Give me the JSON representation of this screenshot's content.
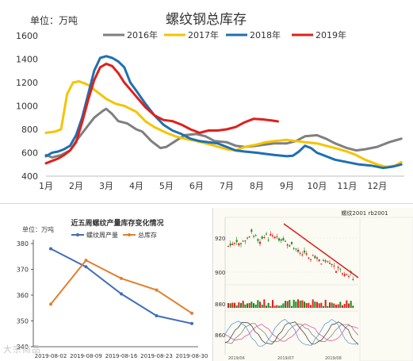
{
  "main_chart": {
    "title": "螺纹钢总库存",
    "unit_label": "单位：万吨",
    "legend": [
      {
        "name": "2016年",
        "color": "#7f7f7f"
      },
      {
        "name": "2017年",
        "color": "#f5c400"
      },
      {
        "name": "2018年",
        "color": "#1f6fb2"
      },
      {
        "name": "2019年",
        "color": "#e0201b"
      }
    ]
  },
  "small_chart": {
    "title": "近五周螺纹产量库存变化情况",
    "unit_label": "单位：万吨"
  },
  "stock_chart": {
    "header": "螺纹2001 rb2001",
    "y_ticks": [
      "920",
      "900",
      "880",
      "860"
    ],
    "date_labels": [
      "2019/06",
      "2019/07",
      "2019/08"
    ]
  },
  "watermark": "大宗商品",
  "chart_data": [
    {
      "type": "line",
      "title": "螺纹钢总库存",
      "ylabel": "单位：万吨",
      "xlabel": "",
      "categories": [
        "1月",
        "2月",
        "3月",
        "4月",
        "5月",
        "6月",
        "7月",
        "8月",
        "9月",
        "10月",
        "11月",
        "12月"
      ],
      "ylim": [
        400,
        1600
      ],
      "yticks": [
        400,
        600,
        800,
        1000,
        1200,
        1400,
        1600
      ],
      "grid": false,
      "legend_position": "top",
      "series": [
        {
          "name": "2016年",
          "color": "#7f7f7f",
          "points": [
            [
              1,
              580
            ],
            [
              1.2,
              560
            ],
            [
              1.5,
              580
            ],
            [
              1.8,
              620
            ],
            [
              2,
              700
            ],
            [
              2.3,
              800
            ],
            [
              2.6,
              900
            ],
            [
              2.9,
              960
            ],
            [
              3,
              975
            ],
            [
              3.2,
              930
            ],
            [
              3.4,
              870
            ],
            [
              3.7,
              850
            ],
            [
              4,
              800
            ],
            [
              4.2,
              780
            ],
            [
              4.5,
              700
            ],
            [
              4.8,
              640
            ],
            [
              5,
              650
            ],
            [
              5.3,
              700
            ],
            [
              5.6,
              750
            ],
            [
              6,
              760
            ],
            [
              6.3,
              740
            ],
            [
              6.6,
              700
            ],
            [
              7,
              690
            ],
            [
              7.3,
              660
            ],
            [
              7.6,
              650
            ],
            [
              8,
              660
            ],
            [
              8.3,
              670
            ],
            [
              8.6,
              680
            ],
            [
              9,
              680
            ],
            [
              9.3,
              700
            ],
            [
              9.6,
              740
            ],
            [
              10,
              750
            ],
            [
              10.3,
              720
            ],
            [
              10.6,
              680
            ],
            [
              11,
              640
            ],
            [
              11.3,
              620
            ],
            [
              11.6,
              630
            ],
            [
              12,
              650
            ],
            [
              12.4,
              690
            ],
            [
              12.8,
              720
            ]
          ]
        },
        {
          "name": "2017年",
          "color": "#f5c400",
          "points": [
            [
              1,
              770
            ],
            [
              1.3,
              780
            ],
            [
              1.5,
              800
            ],
            [
              1.7,
              1100
            ],
            [
              1.9,
              1200
            ],
            [
              2.1,
              1210
            ],
            [
              2.4,
              1180
            ],
            [
              2.7,
              1120
            ],
            [
              3,
              1060
            ],
            [
              3.3,
              1020
            ],
            [
              3.6,
              1000
            ],
            [
              4,
              950
            ],
            [
              4.3,
              870
            ],
            [
              4.6,
              820
            ],
            [
              5,
              770
            ],
            [
              5.3,
              740
            ],
            [
              5.6,
              720
            ],
            [
              6,
              700
            ],
            [
              6.3,
              680
            ],
            [
              6.6,
              660
            ],
            [
              7,
              630
            ],
            [
              7.3,
              620
            ],
            [
              7.6,
              650
            ],
            [
              8,
              670
            ],
            [
              8.3,
              690
            ],
            [
              8.6,
              700
            ],
            [
              9,
              710
            ],
            [
              9.3,
              700
            ],
            [
              9.6,
              690
            ],
            [
              10,
              680
            ],
            [
              10.3,
              660
            ],
            [
              10.6,
              640
            ],
            [
              11,
              610
            ],
            [
              11.3,
              580
            ],
            [
              11.6,
              540
            ],
            [
              12,
              500
            ],
            [
              12.3,
              480
            ],
            [
              12.6,
              490
            ],
            [
              12.8,
              520
            ]
          ]
        },
        {
          "name": "2018年",
          "color": "#1f6fb2",
          "points": [
            [
              1,
              570
            ],
            [
              1.2,
              600
            ],
            [
              1.4,
              610
            ],
            [
              1.6,
              630
            ],
            [
              1.8,
              660
            ],
            [
              2,
              750
            ],
            [
              2.2,
              900
            ],
            [
              2.4,
              1100
            ],
            [
              2.6,
              1300
            ],
            [
              2.8,
              1410
            ],
            [
              3,
              1425
            ],
            [
              3.2,
              1410
            ],
            [
              3.4,
              1380
            ],
            [
              3.6,
              1330
            ],
            [
              3.8,
              1200
            ],
            [
              4,
              1130
            ],
            [
              4.3,
              1020
            ],
            [
              4.6,
              920
            ],
            [
              4.9,
              840
            ],
            [
              5.2,
              790
            ],
            [
              5.5,
              760
            ],
            [
              5.8,
              720
            ],
            [
              6.1,
              700
            ],
            [
              6.4,
              690
            ],
            [
              6.7,
              680
            ],
            [
              7,
              650
            ],
            [
              7.3,
              620
            ],
            [
              7.6,
              610
            ],
            [
              8,
              600
            ],
            [
              8.3,
              590
            ],
            [
              8.6,
              580
            ],
            [
              9,
              570
            ],
            [
              9.2,
              575
            ],
            [
              9.4,
              610
            ],
            [
              9.6,
              660
            ],
            [
              9.8,
              640
            ],
            [
              10,
              600
            ],
            [
              10.3,
              570
            ],
            [
              10.6,
              540
            ],
            [
              11,
              520
            ],
            [
              11.4,
              500
            ],
            [
              11.8,
              490
            ],
            [
              12.2,
              470
            ],
            [
              12.5,
              480
            ],
            [
              12.8,
              500
            ]
          ]
        },
        {
          "name": "2019年",
          "color": "#e0201b",
          "points": [
            [
              1,
              510
            ],
            [
              1.2,
              530
            ],
            [
              1.4,
              550
            ],
            [
              1.6,
              580
            ],
            [
              1.8,
              620
            ],
            [
              2,
              690
            ],
            [
              2.2,
              860
            ],
            [
              2.4,
              1050
            ],
            [
              2.6,
              1220
            ],
            [
              2.8,
              1330
            ],
            [
              3,
              1360
            ],
            [
              3.2,
              1340
            ],
            [
              3.4,
              1280
            ],
            [
              3.6,
              1200
            ],
            [
              3.8,
              1140
            ],
            [
              4,
              1080
            ],
            [
              4.3,
              990
            ],
            [
              4.6,
              920
            ],
            [
              4.9,
              880
            ],
            [
              5.2,
              870
            ],
            [
              5.5,
              840
            ],
            [
              5.8,
              800
            ],
            [
              6.1,
              770
            ],
            [
              6.4,
              790
            ],
            [
              6.7,
              790
            ],
            [
              7,
              800
            ],
            [
              7.3,
              820
            ],
            [
              7.6,
              860
            ],
            [
              7.9,
              890
            ],
            [
              8.2,
              885
            ],
            [
              8.5,
              875
            ],
            [
              8.7,
              868
            ]
          ]
        }
      ]
    },
    {
      "type": "line",
      "title": "近五周螺纹产量库存变化情况",
      "ylabel": "单位：万吨",
      "xlabel": "",
      "categories": [
        "2019-08-02",
        "2019-08-09",
        "2019-08-16",
        "2019-08-23",
        "2019-08-30"
      ],
      "ylim": [
        340,
        380
      ],
      "yticks": [
        340,
        350,
        360,
        370,
        380
      ],
      "grid": false,
      "legend_position": "top",
      "series": [
        {
          "name": "螺纹周产量",
          "color": "#3f6eb7",
          "values": [
            378,
            371,
            360.5,
            352,
            349
          ]
        },
        {
          "name": "总库存",
          "color": "#e27f2d",
          "values": [
            356.5,
            373.5,
            366.5,
            362,
            353
          ]
        }
      ]
    }
  ]
}
